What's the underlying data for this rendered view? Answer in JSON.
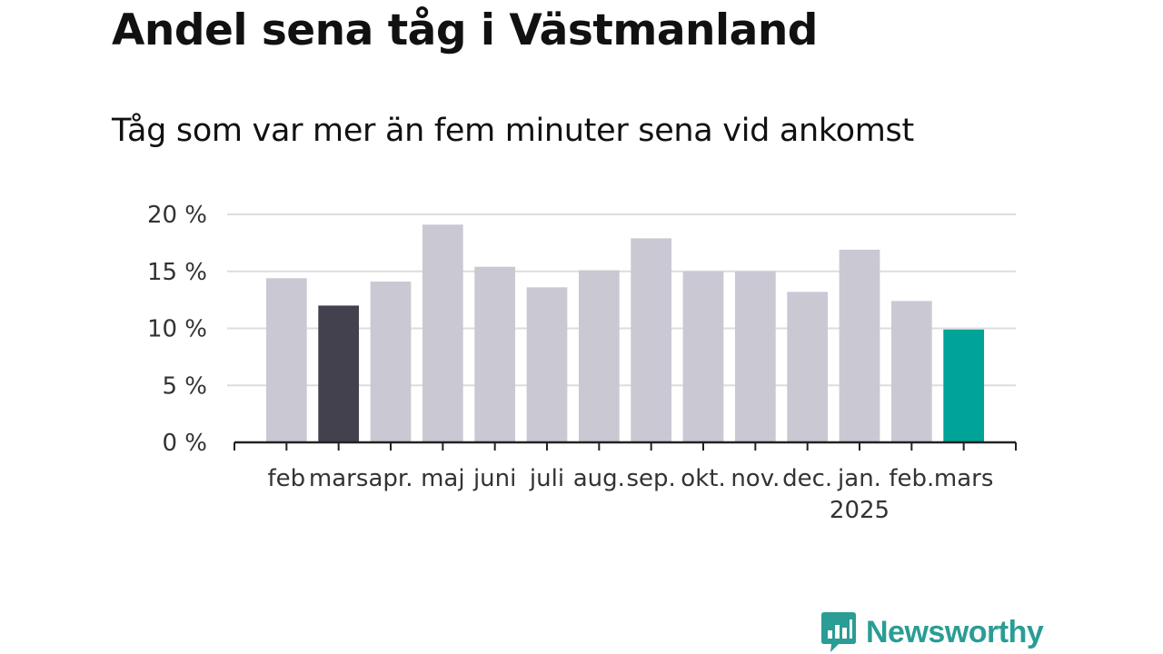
{
  "chart_data": {
    "type": "bar",
    "title": "Andel sena tåg i Västmanland",
    "subtitle": "Tåg som var mer än fem minuter sena vid ankomst",
    "categories": [
      "feb",
      "mars",
      "apr.",
      "maj",
      "juni",
      "juli",
      "aug.",
      "sep.",
      "okt.",
      "nov.",
      "dec.",
      "jan.",
      "feb.",
      "mars"
    ],
    "year_label": "2025",
    "year_label_under_category_index": 11,
    "values": [
      14.4,
      12.0,
      14.1,
      19.1,
      15.4,
      13.6,
      15.1,
      17.9,
      15.0,
      15.0,
      13.2,
      16.9,
      12.4,
      9.9
    ],
    "ylim": [
      0,
      20
    ],
    "yticks": [
      0,
      5,
      10,
      15,
      20
    ],
    "ytick_labels": [
      "0 %",
      "5 %",
      "10 %",
      "15 %",
      "20 %"
    ],
    "grid": true,
    "colors": {
      "default": "#c9c8d3",
      "highlight_previous_year": "#43414e",
      "highlight_current": "#00a398",
      "grid": "#dddddd",
      "axis": "#222222"
    },
    "highlight": {
      "1": "highlight_previous_year",
      "13": "highlight_current"
    }
  },
  "brand": {
    "name": "Newsworthy",
    "logo_icon": "bar-chart-speech-bubble-icon",
    "color": "#2a9d94"
  }
}
